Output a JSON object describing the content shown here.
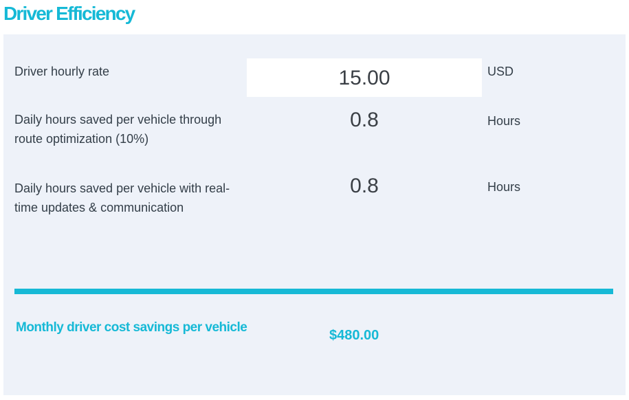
{
  "section": {
    "title": "Driver Efficiency"
  },
  "rows": [
    {
      "label": "Driver hourly rate",
      "value": "15.00",
      "unit": "USD"
    },
    {
      "label": "Daily hours saved per vehicle through route optimization (10%)",
      "value": "0.8",
      "unit": "Hours"
    },
    {
      "label": "Daily hours saved per vehicle with real-time updates & communication",
      "value": "0.8",
      "unit": "Hours"
    }
  ],
  "result": {
    "label": "Monthly driver cost savings per vehicle",
    "value": "$480.00"
  },
  "colors": {
    "accent": "#16b9d6",
    "panel_background": "#eef2f9",
    "text": "#333e48"
  }
}
